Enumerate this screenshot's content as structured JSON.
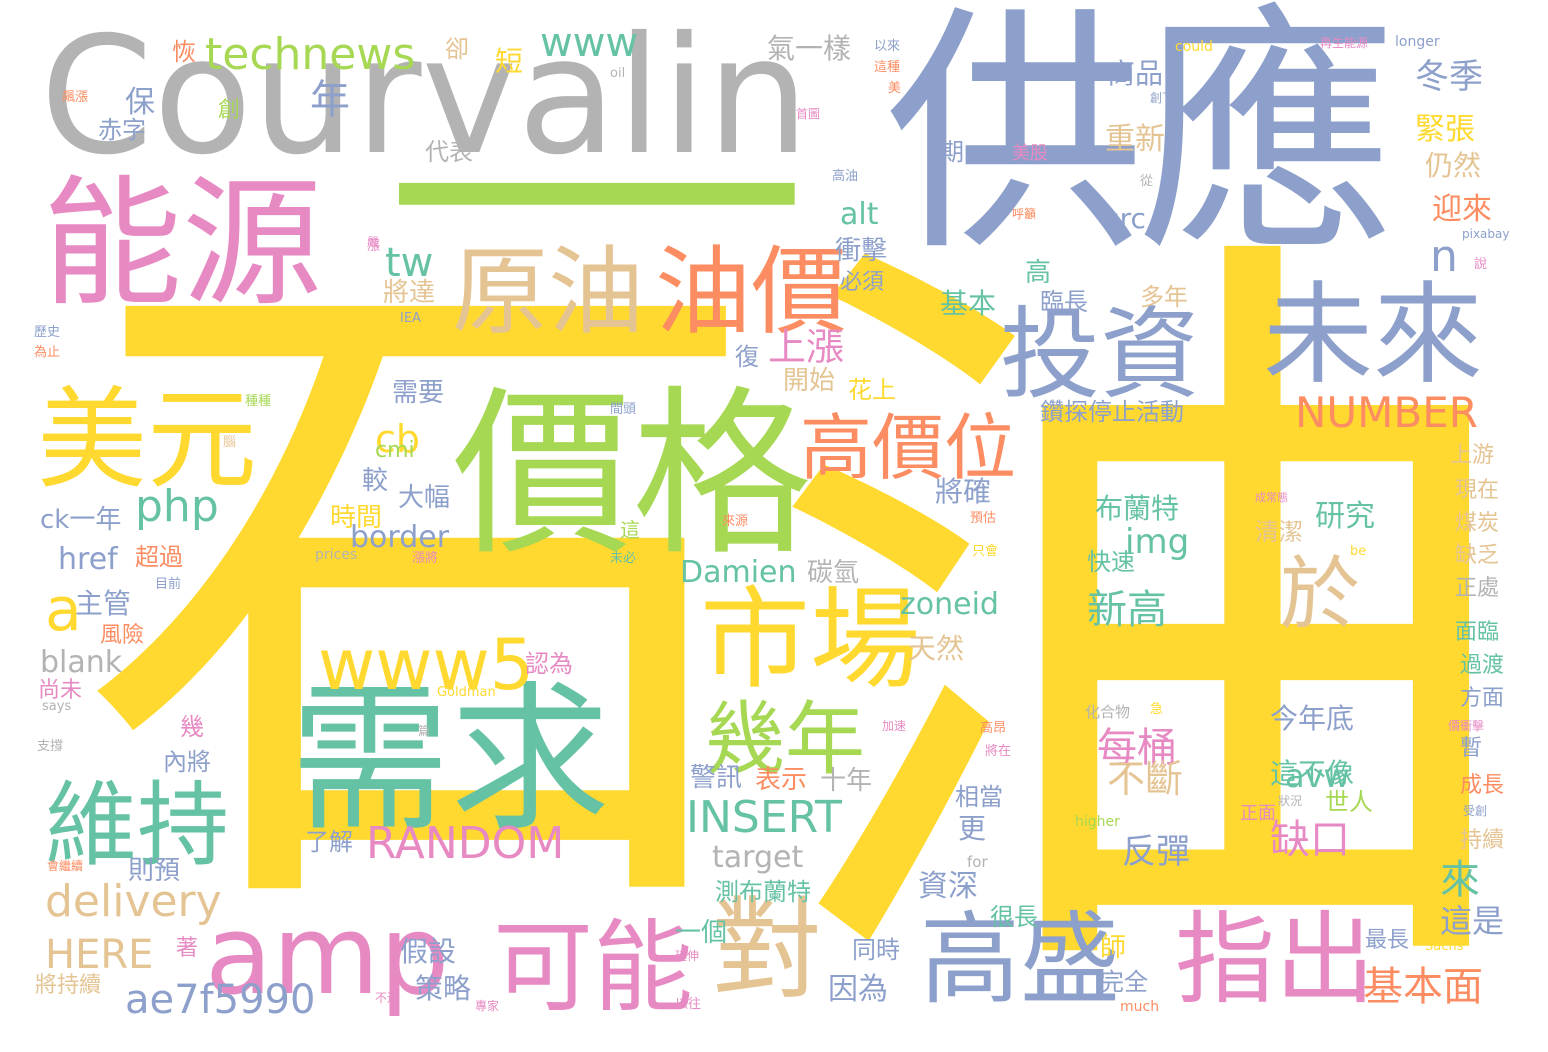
{
  "title": "石油",
  "colors": {
    "yellow": "#ffd92f",
    "green": "#a6d854",
    "blue": "#8da0cb",
    "gray": "#b3b3b3",
    "pink": "#e78ac3",
    "teal": "#66c2a5",
    "orange": "#fc8d62",
    "tan": "#e5c494"
  },
  "words": [
    {
      "t": "石",
      "c": "yellow"
    },
    {
      "t": "油",
      "c": "yellow"
    },
    {
      "t": "供應",
      "c": "blue"
    },
    {
      "t": "Courvalin",
      "c": "gray"
    },
    {
      "t": "一",
      "c": "green"
    },
    {
      "t": "價格",
      "c": "green"
    },
    {
      "t": "需求",
      "c": "teal"
    },
    {
      "t": "能源",
      "c": "pink"
    },
    {
      "t": "原油",
      "c": "tan"
    },
    {
      "t": "油價",
      "c": "orange"
    },
    {
      "t": "市場",
      "c": "yellow"
    },
    {
      "t": "投資",
      "c": "blue"
    },
    {
      "t": "未來",
      "c": "blue"
    },
    {
      "t": "美元",
      "c": "yellow"
    },
    {
      "t": "高價位",
      "c": "orange"
    },
    {
      "t": "高盛",
      "c": "blue"
    },
    {
      "t": "指出",
      "c": "pink"
    },
    {
      "t": "可能",
      "c": "pink"
    },
    {
      "t": "對",
      "c": "tan"
    },
    {
      "t": "amp",
      "c": "pink"
    },
    {
      "t": "維持",
      "c": "teal"
    },
    {
      "t": "幾年",
      "c": "green"
    },
    {
      "t": "於",
      "c": "tan"
    },
    {
      "t": "www5",
      "c": "yellow"
    },
    {
      "t": "technews",
      "c": "green"
    },
    {
      "t": "www",
      "c": "teal"
    },
    {
      "t": "NUMBER",
      "c": "orange"
    },
    {
      "t": "RANDOM",
      "c": "pink"
    },
    {
      "t": "INSERT",
      "c": "teal"
    },
    {
      "t": "php",
      "c": "teal"
    },
    {
      "t": "delivery",
      "c": "tan"
    },
    {
      "t": "ae7f5990",
      "c": "blue"
    },
    {
      "t": "HERE",
      "c": "tan"
    },
    {
      "t": "a",
      "c": "yellow"
    },
    {
      "t": "Damien",
      "c": "teal"
    },
    {
      "t": "zoneid",
      "c": "teal"
    },
    {
      "t": "border",
      "c": "blue"
    },
    {
      "t": "img",
      "c": "teal"
    },
    {
      "t": "tw",
      "c": "teal"
    },
    {
      "t": "src",
      "c": "blue"
    },
    {
      "t": "alt",
      "c": "teal"
    },
    {
      "t": "href",
      "c": "blue"
    },
    {
      "t": "blank",
      "c": "gray"
    },
    {
      "t": "target",
      "c": "gray"
    },
    {
      "t": "ck一年",
      "c": "blue"
    },
    {
      "t": "cb",
      "c": "yellow"
    },
    {
      "t": "avw",
      "c": "teal"
    },
    {
      "t": "n",
      "c": "blue"
    },
    {
      "t": "cmi",
      "c": "green"
    },
    {
      "t": "上漲",
      "c": "pink"
    },
    {
      "t": "新高",
      "c": "teal"
    },
    {
      "t": "每桶",
      "c": "pink"
    },
    {
      "t": "不斷",
      "c": "tan"
    },
    {
      "t": "缺口",
      "c": "pink"
    },
    {
      "t": "反彈",
      "c": "blue"
    },
    {
      "t": "基本面",
      "c": "orange"
    },
    {
      "t": "布蘭特",
      "c": "teal"
    },
    {
      "t": "研究",
      "c": "teal"
    },
    {
      "t": "今年底",
      "c": "blue"
    },
    {
      "t": "這不像",
      "c": "teal"
    },
    {
      "t": "冬季",
      "c": "blue"
    },
    {
      "t": "緊張",
      "c": "yellow"
    },
    {
      "t": "仍然",
      "c": "tan"
    },
    {
      "t": "迎來",
      "c": "orange"
    },
    {
      "t": "商品",
      "c": "blue"
    },
    {
      "t": "重新",
      "c": "tan"
    },
    {
      "t": "氣一樣",
      "c": "gray"
    },
    {
      "t": "衝擊",
      "c": "blue"
    },
    {
      "t": "將達",
      "c": "tan"
    },
    {
      "t": "基本",
      "c": "teal"
    },
    {
      "t": "多年",
      "c": "tan"
    },
    {
      "t": "臨長",
      "c": "blue"
    },
    {
      "t": "高",
      "c": "teal"
    },
    {
      "t": "開始",
      "c": "tan"
    },
    {
      "t": "花上",
      "c": "yellow"
    },
    {
      "t": "鑽探停止活動",
      "c": "blue"
    },
    {
      "t": "將確",
      "c": "blue"
    },
    {
      "t": "大幅",
      "c": "blue"
    },
    {
      "t": "較",
      "c": "blue"
    },
    {
      "t": "時間",
      "c": "yellow"
    },
    {
      "t": "碳氫",
      "c": "gray"
    },
    {
      "t": "天然",
      "c": "tan"
    },
    {
      "t": "需要",
      "c": "blue"
    },
    {
      "t": "警訊",
      "c": "blue"
    },
    {
      "t": "表示",
      "c": "orange"
    },
    {
      "t": "十年",
      "c": "gray"
    },
    {
      "t": "更",
      "c": "blue"
    },
    {
      "t": "相當",
      "c": "blue"
    },
    {
      "t": "資深",
      "c": "blue"
    },
    {
      "t": "假設",
      "c": "blue"
    },
    {
      "t": "策略",
      "c": "blue"
    },
    {
      "t": "因為",
      "c": "blue"
    },
    {
      "t": "測布蘭特",
      "c": "teal"
    },
    {
      "t": "很長",
      "c": "teal"
    },
    {
      "t": "同時",
      "c": "blue"
    },
    {
      "t": "完全",
      "c": "blue"
    },
    {
      "t": "一個",
      "c": "teal"
    },
    {
      "t": "師",
      "c": "yellow"
    },
    {
      "t": "了解",
      "c": "blue"
    },
    {
      "t": "則預",
      "c": "blue"
    },
    {
      "t": "主管",
      "c": "blue"
    },
    {
      "t": "風險",
      "c": "orange"
    },
    {
      "t": "超過",
      "c": "orange"
    },
    {
      "t": "認為",
      "c": "pink"
    },
    {
      "t": "幾",
      "c": "pink"
    },
    {
      "t": "內將",
      "c": "blue"
    },
    {
      "t": "著",
      "c": "pink"
    },
    {
      "t": "將持續",
      "c": "tan"
    },
    {
      "t": "尚未",
      "c": "pink"
    },
    {
      "t": "年",
      "c": "blue"
    },
    {
      "t": "保",
      "c": "blue"
    },
    {
      "t": "赤字",
      "c": "blue"
    },
    {
      "t": "代表",
      "c": "gray"
    },
    {
      "t": "卻",
      "c": "tan"
    },
    {
      "t": "短",
      "c": "yellow"
    },
    {
      "t": "恢",
      "c": "orange"
    },
    {
      "t": "創",
      "c": "green"
    },
    {
      "t": "期",
      "c": "blue"
    },
    {
      "t": "美股",
      "c": "pink"
    },
    {
      "t": "復",
      "c": "blue"
    },
    {
      "t": "這",
      "c": "green"
    },
    {
      "t": "必須",
      "c": "blue"
    },
    {
      "t": "來",
      "c": "teal"
    },
    {
      "t": "這是",
      "c": "blue"
    },
    {
      "t": "最長",
      "c": "blue"
    },
    {
      "t": "世人",
      "c": "green"
    },
    {
      "t": "正面",
      "c": "pink"
    },
    {
      "t": "快速",
      "c": "teal"
    },
    {
      "t": "清潔",
      "c": "tan"
    },
    {
      "t": "上游",
      "c": "tan"
    },
    {
      "t": "現在",
      "c": "tan"
    },
    {
      "t": "煤炭",
      "c": "tan"
    },
    {
      "t": "缺乏",
      "c": "tan"
    },
    {
      "t": "正處",
      "c": "gray"
    },
    {
      "t": "面臨",
      "c": "teal"
    },
    {
      "t": "過渡",
      "c": "teal"
    },
    {
      "t": "方面",
      "c": "blue"
    },
    {
      "t": "暫",
      "c": "blue"
    },
    {
      "t": "成長",
      "c": "orange"
    },
    {
      "t": "持續",
      "c": "tan"
    },
    {
      "t": "化合物",
      "c": "gray"
    },
    {
      "t": "higher",
      "c": "green"
    },
    {
      "t": "for",
      "c": "gray"
    },
    {
      "t": "much",
      "c": "orange"
    },
    {
      "t": "Sachs",
      "c": "yellow"
    },
    {
      "t": "Goldman",
      "c": "yellow"
    },
    {
      "t": "prices",
      "c": "gray"
    },
    {
      "t": "says",
      "c": "gray"
    },
    {
      "t": "be",
      "c": "yellow"
    },
    {
      "t": "could",
      "c": "yellow"
    },
    {
      "t": "oil",
      "c": "gray"
    },
    {
      "t": "longer",
      "c": "blue"
    },
    {
      "t": "pixabay",
      "c": "blue"
    },
    {
      "t": "IEA",
      "c": "blue"
    },
    {
      "t": "歷史",
      "c": "blue"
    },
    {
      "t": "為止",
      "c": "orange"
    },
    {
      "t": "種種",
      "c": "green"
    },
    {
      "t": "目前",
      "c": "blue"
    },
    {
      "t": "支撐",
      "c": "gray"
    },
    {
      "t": "會繼續",
      "c": "orange"
    },
    {
      "t": "不過",
      "c": "pink"
    },
    {
      "t": "專家",
      "c": "pink"
    },
    {
      "t": "以往",
      "c": "pink"
    },
    {
      "t": "延伸",
      "c": "pink"
    },
    {
      "t": "預估",
      "c": "orange"
    },
    {
      "t": "只會",
      "c": "yellow"
    },
    {
      "t": "狀況",
      "c": "gray"
    },
    {
      "t": "受創",
      "c": "blue"
    },
    {
      "t": "價衝擊",
      "c": "pink"
    },
    {
      "t": "加速",
      "c": "pink"
    },
    {
      "t": "將在",
      "c": "pink"
    },
    {
      "t": "高昂",
      "c": "orange"
    },
    {
      "t": "急",
      "c": "yellow"
    },
    {
      "t": "成常態",
      "c": "pink"
    },
    {
      "t": "再生能源",
      "c": "pink"
    },
    {
      "t": "創下",
      "c": "blue"
    },
    {
      "t": "從",
      "c": "gray"
    },
    {
      "t": "說",
      "c": "pink"
    },
    {
      "t": "呼籲",
      "c": "orange"
    },
    {
      "t": "首圖",
      "c": "pink"
    },
    {
      "t": "以來",
      "c": "blue"
    },
    {
      "t": "這種",
      "c": "orange"
    },
    {
      "t": "飆漲",
      "c": "orange"
    },
    {
      "t": "漲將",
      "c": "pink"
    },
    {
      "t": "來源",
      "c": "orange"
    },
    {
      "t": "未必",
      "c": "teal"
    },
    {
      "t": "間頭",
      "c": "blue"
    },
    {
      "t": "高油",
      "c": "blue"
    },
    {
      "t": "美",
      "c": "orange"
    },
    {
      "t": "漲",
      "c": "pink"
    },
    {
      "t": "腦",
      "c": "tan"
    },
    {
      "t": "篇",
      "c": "gray"
    },
    {
      "t": "嚴",
      "c": "pink"
    }
  ]
}
